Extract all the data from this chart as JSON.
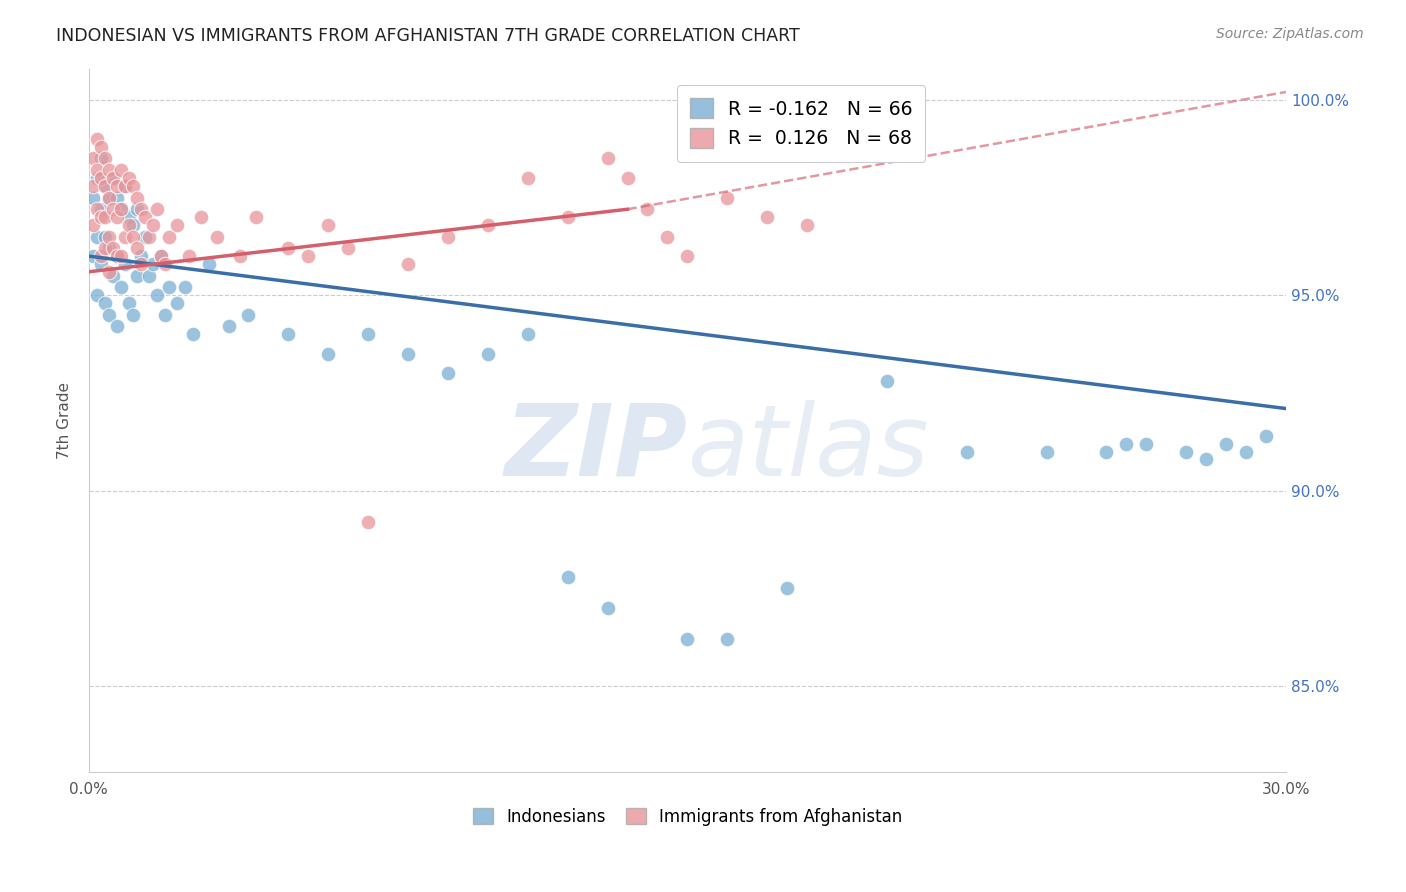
{
  "title": "INDONESIAN VS IMMIGRANTS FROM AFGHANISTAN 7TH GRADE CORRELATION CHART",
  "source": "Source: ZipAtlas.com",
  "ylabel": "7th Grade",
  "xlim": [
    0.0,
    0.3
  ],
  "ylim": [
    0.828,
    1.008
  ],
  "ytick_labels": [
    "85.0%",
    "90.0%",
    "95.0%",
    "100.0%"
  ],
  "ytick_vals": [
    0.85,
    0.9,
    0.95,
    1.0
  ],
  "xtick_vals": [
    0.0,
    0.05,
    0.1,
    0.15,
    0.2,
    0.25,
    0.3
  ],
  "xtick_labels": [
    "0.0%",
    "",
    "",
    "",
    "",
    "",
    "30.0%"
  ],
  "blue_color": "#7bafd4",
  "pink_color": "#e8959a",
  "blue_line_color": "#3b6ea8",
  "pink_line_color": "#d45f6a",
  "legend_blue_label": "R = -0.162   N = 66",
  "legend_pink_label": "R =  0.126   N = 68",
  "watermark_zip": "ZIP",
  "watermark_atlas": "atlas",
  "legend_label_indonesians": "Indonesians",
  "legend_label_afghanistan": "Immigrants from Afghanistan",
  "blue_line_x0": 0.0,
  "blue_line_y0": 0.96,
  "blue_line_x1": 0.3,
  "blue_line_y1": 0.921,
  "pink_line_x0": 0.0,
  "pink_line_y0": 0.956,
  "pink_line_x1_solid": 0.135,
  "pink_line_y1_solid": 0.972,
  "pink_line_x1_dash": 0.3,
  "pink_line_y1_dash": 1.002,
  "blue_scatter_x": [
    0.001,
    0.001,
    0.002,
    0.002,
    0.002,
    0.003,
    0.003,
    0.003,
    0.004,
    0.004,
    0.004,
    0.005,
    0.005,
    0.005,
    0.006,
    0.006,
    0.007,
    0.007,
    0.007,
    0.008,
    0.008,
    0.009,
    0.009,
    0.01,
    0.01,
    0.011,
    0.011,
    0.012,
    0.012,
    0.013,
    0.014,
    0.015,
    0.016,
    0.017,
    0.018,
    0.019,
    0.02,
    0.022,
    0.024,
    0.026,
    0.03,
    0.035,
    0.04,
    0.05,
    0.06,
    0.07,
    0.08,
    0.09,
    0.1,
    0.11,
    0.12,
    0.13,
    0.15,
    0.16,
    0.175,
    0.2,
    0.22,
    0.24,
    0.255,
    0.26,
    0.265,
    0.275,
    0.28,
    0.285,
    0.29,
    0.295
  ],
  "blue_scatter_y": [
    0.975,
    0.96,
    0.98,
    0.965,
    0.95,
    0.985,
    0.972,
    0.958,
    0.978,
    0.965,
    0.948,
    0.975,
    0.962,
    0.945,
    0.98,
    0.955,
    0.975,
    0.96,
    0.942,
    0.972,
    0.952,
    0.978,
    0.958,
    0.97,
    0.948,
    0.968,
    0.945,
    0.972,
    0.955,
    0.96,
    0.965,
    0.955,
    0.958,
    0.95,
    0.96,
    0.945,
    0.952,
    0.948,
    0.952,
    0.94,
    0.958,
    0.942,
    0.945,
    0.94,
    0.935,
    0.94,
    0.935,
    0.93,
    0.935,
    0.94,
    0.878,
    0.87,
    0.862,
    0.862,
    0.875,
    0.928,
    0.91,
    0.91,
    0.91,
    0.912,
    0.912,
    0.91,
    0.908,
    0.912,
    0.91,
    0.914
  ],
  "pink_scatter_x": [
    0.001,
    0.001,
    0.001,
    0.002,
    0.002,
    0.002,
    0.003,
    0.003,
    0.003,
    0.003,
    0.004,
    0.004,
    0.004,
    0.004,
    0.005,
    0.005,
    0.005,
    0.005,
    0.006,
    0.006,
    0.006,
    0.007,
    0.007,
    0.007,
    0.008,
    0.008,
    0.008,
    0.009,
    0.009,
    0.01,
    0.01,
    0.011,
    0.011,
    0.012,
    0.012,
    0.013,
    0.013,
    0.014,
    0.015,
    0.016,
    0.017,
    0.018,
    0.019,
    0.02,
    0.022,
    0.025,
    0.028,
    0.032,
    0.038,
    0.042,
    0.05,
    0.055,
    0.06,
    0.065,
    0.07,
    0.08,
    0.09,
    0.1,
    0.11,
    0.12,
    0.13,
    0.135,
    0.14,
    0.145,
    0.15,
    0.16,
    0.17,
    0.18
  ],
  "pink_scatter_y": [
    0.985,
    0.978,
    0.968,
    0.99,
    0.982,
    0.972,
    0.988,
    0.98,
    0.97,
    0.96,
    0.985,
    0.978,
    0.97,
    0.962,
    0.982,
    0.975,
    0.965,
    0.956,
    0.98,
    0.972,
    0.962,
    0.978,
    0.97,
    0.96,
    0.982,
    0.972,
    0.96,
    0.978,
    0.965,
    0.98,
    0.968,
    0.978,
    0.965,
    0.975,
    0.962,
    0.972,
    0.958,
    0.97,
    0.965,
    0.968,
    0.972,
    0.96,
    0.958,
    0.965,
    0.968,
    0.96,
    0.97,
    0.965,
    0.96,
    0.97,
    0.962,
    0.96,
    0.968,
    0.962,
    0.892,
    0.958,
    0.965,
    0.968,
    0.98,
    0.97,
    0.985,
    0.98,
    0.972,
    0.965,
    0.96,
    0.975,
    0.97,
    0.968
  ]
}
